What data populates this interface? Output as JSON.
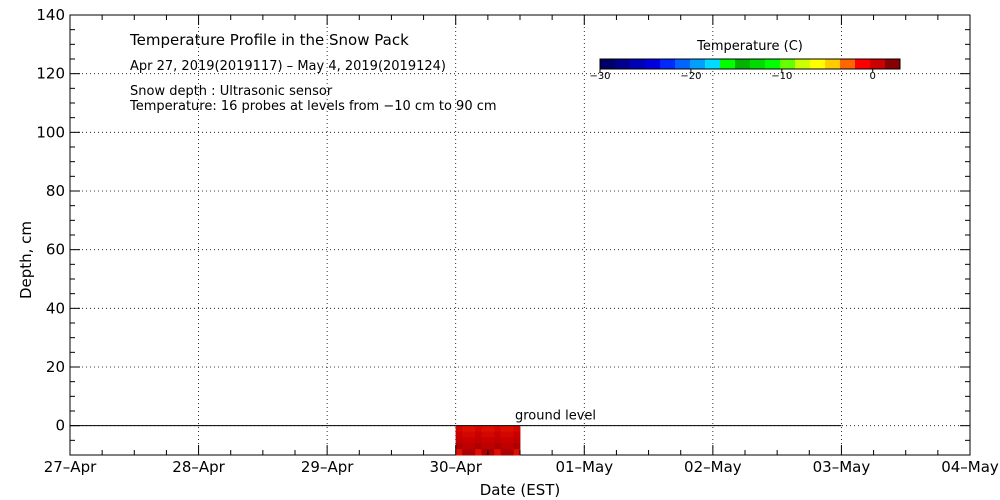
{
  "chart_data": {
    "type": "heatmap",
    "title": "Temperature Profile in the Snow Pack",
    "subtitle": "Apr 27, 2019(2019117) – May  4, 2019(2019124)",
    "notes": [
      "Snow depth : Ultrasonic sensor",
      "Temperature: 16 probes at levels from −10 cm to 90 cm"
    ],
    "xlabel": "Date (EST)",
    "ylabel": "Depth, cm",
    "x_ticks": [
      "27–Apr",
      "28–Apr",
      "29–Apr",
      "30–Apr",
      "01–May",
      "02–May",
      "03–May",
      "04–May"
    ],
    "xlim": [
      "2019-04-27",
      "2019-05-04"
    ],
    "y_ticks": [
      0,
      20,
      40,
      60,
      80,
      100,
      120,
      140
    ],
    "ylim": [
      -10,
      140
    ],
    "grid": true,
    "ground_level": {
      "label": "ground level",
      "depth": 0,
      "x_end": "2019-05-03"
    },
    "colorbar": {
      "title": "Temperature (C)",
      "ticks": [
        "−30",
        "−20",
        "−10",
        "0"
      ],
      "tick_values": [
        -30,
        -20,
        -10,
        0
      ],
      "range": [
        -30,
        3
      ],
      "colors": [
        "#000066",
        "#00008c",
        "#0000b4",
        "#0000dc",
        "#0028ff",
        "#0064ff",
        "#00a0ff",
        "#00dcff",
        "#00ff00",
        "#00b400",
        "#00dc00",
        "#00ff00",
        "#66ff00",
        "#ccff00",
        "#ffff00",
        "#ffcc00",
        "#ff6600",
        "#ff0000",
        "#cc0000",
        "#880000"
      ]
    },
    "heatmap_region": {
      "x_start": "2019-04-30",
      "x_end": "2019-04-30T12:00",
      "depth_top": 0,
      "depth_bottom": -10,
      "temperature_approx": 0
    }
  }
}
